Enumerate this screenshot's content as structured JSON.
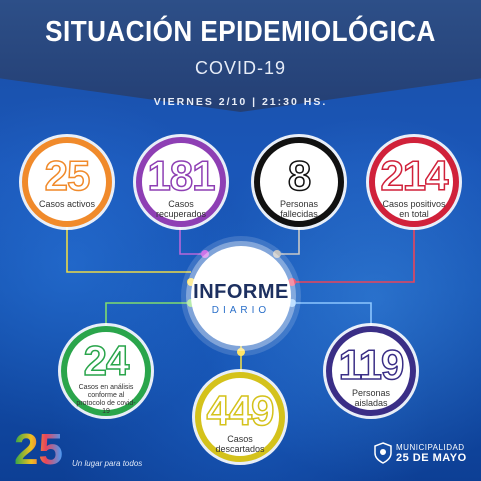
{
  "header": {
    "title": "SITUACIÓN EPIDEMIOLÓGICA",
    "subtitle": "COVID-19",
    "date": "VIERNES 2/10 | 21:30 HS."
  },
  "stats": [
    {
      "value": "25",
      "label": "Casos activos",
      "color": "#f08a2b"
    },
    {
      "value": "181",
      "label": "Casos recuperados",
      "color": "#8e3fb4"
    },
    {
      "value": "8",
      "label": "Personas fallecidas",
      "color": "#111111"
    },
    {
      "value": "214",
      "label": "Casos positivos en total",
      "color": "#d0213a"
    },
    {
      "value": "24",
      "label": "Casos en análisis conforme al protocolo de covid-19",
      "color": "#2aa54b"
    },
    {
      "value": "449",
      "label": "Casos descartados",
      "color": "#d4c21b"
    },
    {
      "value": "119",
      "label": "Personas aisladas",
      "color": "#3a2e86"
    }
  ],
  "center": {
    "title": "INFORME",
    "subtitle": "DIARIO"
  },
  "footer": {
    "logo_number": "25",
    "slogan": "Un lugar para todos",
    "municipality_line1": "MUNICIPALIDAD",
    "municipality_line2": "25 DE MAYO"
  }
}
